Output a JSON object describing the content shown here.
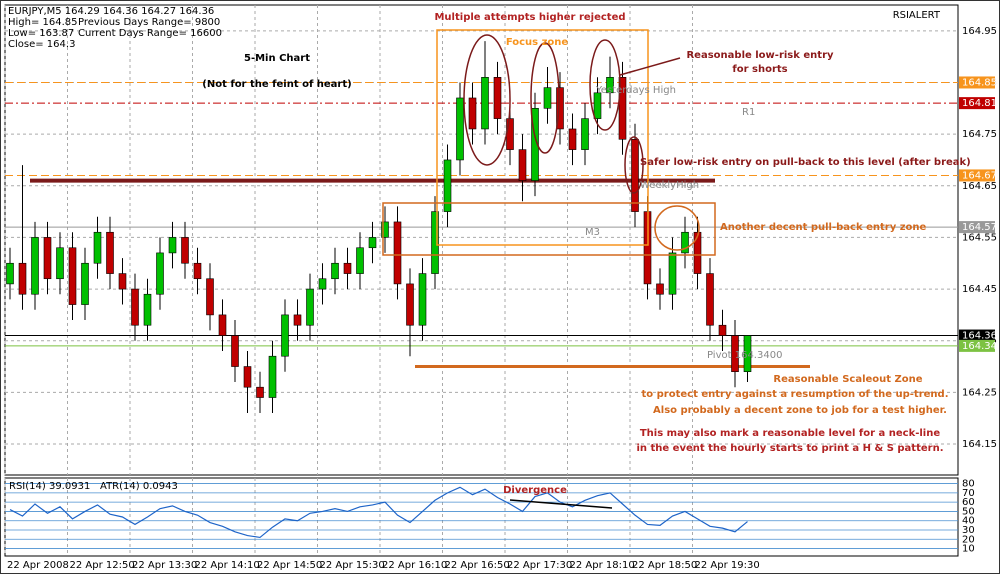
{
  "chart_data": {
    "type": "candlestick",
    "info": [
      [
        "EURJPY,M5  164.29 164.36 164.27 164.36",
        ""
      ],
      [
        "High= 164.85",
        "Previous Days Range= 9800"
      ],
      [
        "Low= 163.87",
        "Current Days Range= 16600"
      ],
      [
        "Close= 164.3",
        ""
      ]
    ],
    "indicator_name": "RSIALERT",
    "ohlc": [
      [
        164.46,
        164.53,
        164.43,
        164.5
      ],
      [
        164.5,
        164.69,
        164.41,
        164.44
      ],
      [
        164.44,
        164.58,
        164.41,
        164.55
      ],
      [
        164.55,
        164.58,
        164.44,
        164.47
      ],
      [
        164.47,
        164.56,
        164.44,
        164.53
      ],
      [
        164.53,
        164.56,
        164.39,
        164.42
      ],
      [
        164.42,
        164.53,
        164.39,
        164.5
      ],
      [
        164.5,
        164.59,
        164.47,
        164.56
      ],
      [
        164.56,
        164.59,
        164.45,
        164.48
      ],
      [
        164.48,
        164.51,
        164.42,
        164.45
      ],
      [
        164.45,
        164.48,
        164.35,
        164.38
      ],
      [
        164.38,
        164.47,
        164.35,
        164.44
      ],
      [
        164.44,
        164.55,
        164.41,
        164.52
      ],
      [
        164.52,
        164.58,
        164.49,
        164.55
      ],
      [
        164.55,
        164.58,
        164.47,
        164.5
      ],
      [
        164.5,
        164.53,
        164.44,
        164.47
      ],
      [
        164.47,
        164.5,
        164.37,
        164.4
      ],
      [
        164.4,
        164.43,
        164.33,
        164.36
      ],
      [
        164.36,
        164.39,
        164.27,
        164.3
      ],
      [
        164.3,
        164.33,
        164.21,
        164.26
      ],
      [
        164.26,
        164.29,
        164.21,
        164.24
      ],
      [
        164.24,
        164.35,
        164.21,
        164.32
      ],
      [
        164.32,
        164.43,
        164.29,
        164.4
      ],
      [
        164.4,
        164.43,
        164.35,
        164.38
      ],
      [
        164.38,
        164.48,
        164.35,
        164.45
      ],
      [
        164.45,
        164.5,
        164.42,
        164.47
      ],
      [
        164.47,
        164.53,
        164.44,
        164.5
      ],
      [
        164.5,
        164.53,
        164.45,
        164.48
      ],
      [
        164.48,
        164.56,
        164.45,
        164.53
      ],
      [
        164.53,
        164.58,
        164.5,
        164.55
      ],
      [
        164.55,
        164.61,
        164.52,
        164.58
      ],
      [
        164.58,
        164.61,
        164.43,
        164.46
      ],
      [
        164.46,
        164.49,
        164.32,
        164.38
      ],
      [
        164.38,
        164.51,
        164.35,
        164.48
      ],
      [
        164.48,
        164.63,
        164.45,
        164.6
      ],
      [
        164.6,
        164.73,
        164.57,
        164.7
      ],
      [
        164.7,
        164.85,
        164.67,
        164.82
      ],
      [
        164.82,
        164.85,
        164.73,
        164.76
      ],
      [
        164.76,
        164.93,
        164.73,
        164.86
      ],
      [
        164.86,
        164.89,
        164.75,
        164.78
      ],
      [
        164.78,
        164.81,
        164.69,
        164.72
      ],
      [
        164.72,
        164.75,
        164.62,
        164.66
      ],
      [
        164.66,
        164.83,
        164.63,
        164.8
      ],
      [
        164.8,
        164.88,
        164.77,
        164.84
      ],
      [
        164.84,
        164.87,
        164.73,
        164.76
      ],
      [
        164.76,
        164.79,
        164.69,
        164.72
      ],
      [
        164.72,
        164.81,
        164.69,
        164.78
      ],
      [
        164.78,
        164.86,
        164.75,
        164.83
      ],
      [
        164.83,
        164.9,
        164.8,
        164.86
      ],
      [
        164.86,
        164.89,
        164.71,
        164.74
      ],
      [
        164.74,
        164.77,
        164.57,
        164.6
      ],
      [
        164.6,
        164.63,
        164.43,
        164.46
      ],
      [
        164.46,
        164.49,
        164.41,
        164.44
      ],
      [
        164.44,
        164.55,
        164.41,
        164.52
      ],
      [
        164.52,
        164.59,
        164.49,
        164.56
      ],
      [
        164.56,
        164.59,
        164.45,
        164.48
      ],
      [
        164.48,
        164.51,
        164.35,
        164.38
      ],
      [
        164.38,
        164.41,
        164.33,
        164.36
      ],
      [
        164.36,
        164.39,
        164.26,
        164.29
      ],
      [
        164.29,
        164.36,
        164.27,
        164.36
      ]
    ],
    "up_color": "#00c000",
    "down_color": "#c00000",
    "xlim": [
      -0.4,
      75.84
    ],
    "xticks": [
      {
        "value": -0.4,
        "label": "22 Apr 2008"
      },
      {
        "value": 4.6,
        "label": "22 Apr 12:50"
      },
      {
        "value": 9.6,
        "label": "22 Apr 13:30"
      },
      {
        "value": 14.6,
        "label": "22 Apr 14:10"
      },
      {
        "value": 19.6,
        "label": "22 Apr 14:50"
      },
      {
        "value": 24.6,
        "label": "22 Apr 15:30"
      },
      {
        "value": 29.6,
        "label": "22 Apr 16:10"
      },
      {
        "value": 34.6,
        "label": "22 Apr 16:50"
      },
      {
        "value": 39.6,
        "label": "22 Apr 17:30"
      },
      {
        "value": 44.6,
        "label": "22 Apr 18:10"
      },
      {
        "value": 49.6,
        "label": "22 Apr 18:50"
      },
      {
        "value": 54.6,
        "label": "22 Apr 19:30"
      }
    ],
    "ylim": [
      164.09,
      165.0
    ],
    "yticks": [
      164.95,
      164.85,
      164.75,
      164.65,
      164.55,
      164.45,
      164.35,
      164.25,
      164.15
    ],
    "grid": true,
    "levels": [
      {
        "value": 164.85,
        "color": "#f7941d",
        "style": "dashed"
      },
      {
        "value": 164.81,
        "color": "#c00000",
        "style": "dashdot"
      },
      {
        "value": 164.67,
        "color": "#f7941d",
        "style": "dashed"
      },
      {
        "value": 164.57,
        "color": "#999999",
        "style": "solid"
      },
      {
        "value": 164.36,
        "color": "#000000",
        "style": "solid"
      },
      {
        "value": 164.34,
        "color": "#7cc242",
        "style": "solid"
      }
    ],
    "trend_lines": [
      {
        "value": 164.66,
        "color": "#7b1a1a"
      },
      {
        "value": 164.3,
        "color": "#d2691e"
      }
    ],
    "annotations": [
      {
        "text": "Multiple attempts higher rejected",
        "color": "#b22222"
      },
      {
        "text": "5-Min Chart",
        "color": "#000000"
      },
      {
        "text": "(Not for the feint of heart)",
        "color": "#000000"
      },
      {
        "text": "Focus zone",
        "color": "#f7941d"
      },
      {
        "text": "Reasonable low-risk entry",
        "color": "#8b1a1a"
      },
      {
        "text": "for shorts",
        "color": "#8b1a1a"
      },
      {
        "text": "Safer low-risk entry on pull-back to this level (after break)",
        "color": "#8b1a1a"
      },
      {
        "text": "Another decent pull-back entry zone",
        "color": "#d2691e"
      },
      {
        "text": "Reasonable Scaleout Zone",
        "color": "#d2691e"
      },
      {
        "text": "to protect entry against a resumption of the up-trend.",
        "color": "#d2691e"
      },
      {
        "text": "Also probably a decent zone to job for a test higher.",
        "color": "#d2691e"
      },
      {
        "text": "This may also mark a reasonable level for a neck-line",
        "color": "#b22222"
      },
      {
        "text": "in the event the hourly starts to print a H & S pattern.",
        "color": "#b22222"
      },
      {
        "text": "Divergence",
        "color": "#b22222"
      }
    ],
    "level_names": [
      "Yesterdays High",
      "R1",
      "WeeklyHigh",
      "M3",
      "Pivot 164.3400"
    ],
    "rsi": {
      "name": "RSI(14) 39.0931",
      "extra": "ATR(14) 0.0943",
      "color": "#1e64c8",
      "values": [
        52,
        45,
        58,
        48,
        55,
        42,
        50,
        57,
        47,
        44,
        36,
        44,
        53,
        56,
        50,
        46,
        38,
        34,
        28,
        24,
        22,
        33,
        42,
        40,
        48,
        50,
        53,
        50,
        55,
        57,
        60,
        46,
        38,
        50,
        62,
        70,
        76,
        68,
        74,
        65,
        58,
        50,
        66,
        70,
        60,
        55,
        62,
        67,
        70,
        58,
        46,
        36,
        35,
        45,
        50,
        42,
        34,
        32,
        28,
        39.0931
      ],
      "ylim": [
        2,
        86
      ],
      "yticks": [
        10,
        20,
        30,
        40,
        50,
        60,
        70,
        80
      ]
    }
  }
}
